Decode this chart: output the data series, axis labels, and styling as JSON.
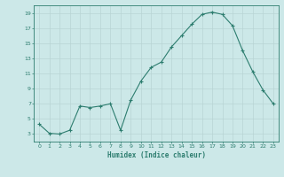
{
  "x": [
    0,
    1,
    2,
    3,
    4,
    5,
    6,
    7,
    8,
    9,
    10,
    11,
    12,
    13,
    14,
    15,
    16,
    17,
    18,
    19,
    20,
    21,
    22,
    23
  ],
  "y": [
    4.3,
    3.1,
    3.0,
    3.5,
    6.7,
    6.5,
    6.7,
    7.0,
    3.5,
    7.5,
    10.0,
    11.8,
    12.5,
    14.5,
    16.0,
    17.5,
    18.8,
    19.1,
    18.8,
    17.3,
    14.0,
    11.2,
    8.8,
    7.0
  ],
  "xlabel": "Humidex (Indice chaleur)",
  "xlim": [
    -0.5,
    23.5
  ],
  "ylim": [
    2.0,
    20.0
  ],
  "yticks": [
    3,
    5,
    7,
    9,
    11,
    13,
    15,
    17,
    19
  ],
  "xticks": [
    0,
    1,
    2,
    3,
    4,
    5,
    6,
    7,
    8,
    9,
    10,
    11,
    12,
    13,
    14,
    15,
    16,
    17,
    18,
    19,
    20,
    21,
    22,
    23
  ],
  "line_color": "#2d7d6f",
  "bg_color": "#cce8e8",
  "grid_color": "#b8d4d4"
}
